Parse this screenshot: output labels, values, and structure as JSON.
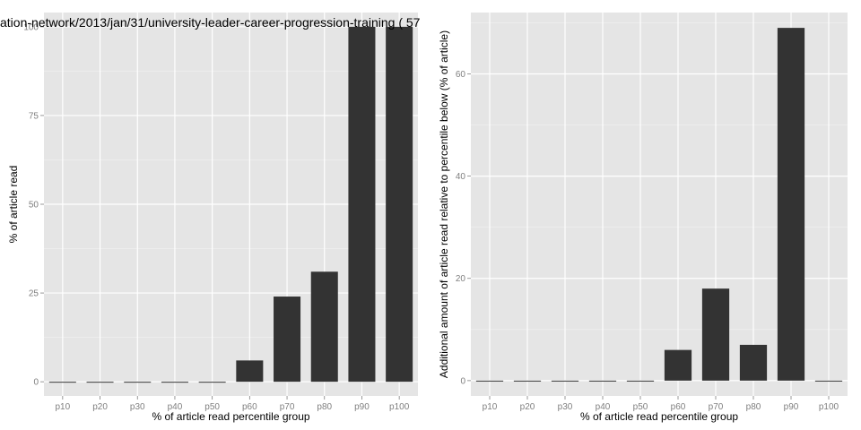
{
  "chart_data": [
    {
      "type": "bar",
      "title": "ation-network/2013/jan/31/university-leader-career-progression-training ( 57",
      "xlabel": "% of article read percentile group",
      "ylabel": "% of article read",
      "categories": [
        "p10",
        "p20",
        "p30",
        "p40",
        "p50",
        "p60",
        "p70",
        "p80",
        "p90",
        "p100"
      ],
      "values": [
        0,
        0,
        0,
        0,
        0,
        6,
        24,
        31,
        100,
        100
      ],
      "ylim": [
        -4,
        104
      ],
      "yticks": [
        0,
        25,
        50,
        75,
        100
      ],
      "grid": true
    },
    {
      "type": "bar",
      "title": "",
      "xlabel": "% of article read percentile group",
      "ylabel": "Additional amount of article read relative to percentile below (% of article)",
      "categories": [
        "p10",
        "p20",
        "p30",
        "p40",
        "p50",
        "p60",
        "p70",
        "p80",
        "p90",
        "p100"
      ],
      "values": [
        0,
        0,
        0,
        0,
        0,
        6,
        18,
        7,
        69,
        0
      ],
      "ylim": [
        -3,
        72
      ],
      "yticks": [
        0,
        20,
        40,
        60
      ],
      "grid": true
    }
  ],
  "colors": {
    "panel_background": "#e5e5e5",
    "grid": "#ffffff",
    "bar": "#333333",
    "tick_text": "#7f7f7f"
  }
}
